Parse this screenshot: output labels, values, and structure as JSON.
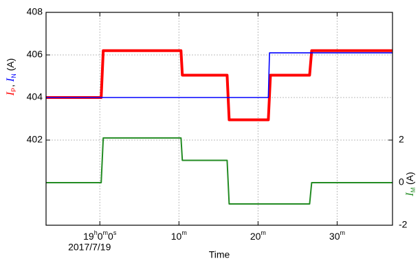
{
  "chart_data": {
    "type": "line",
    "xlabel": "Time",
    "date_label": "2017/7/19",
    "xlim": [
      -6.8,
      37
    ],
    "xticks": [
      {
        "value": 0,
        "label": "19h0m0s"
      },
      {
        "value": 10,
        "label": "10m"
      },
      {
        "value": 20,
        "label": "20m"
      },
      {
        "value": 30,
        "label": "30m"
      }
    ],
    "ylim": [
      398,
      408
    ],
    "yticks": [
      402,
      404,
      406,
      408
    ],
    "y2lim": [
      -2,
      8
    ],
    "y2ticks": [
      -2,
      0,
      2
    ],
    "ylabel_separator": ",",
    "unit": "(A)",
    "grid": true,
    "series": [
      {
        "name": "I",
        "subscript": "P",
        "color": "#ff0000",
        "linewidth": 4,
        "x": [
          -6.8,
          0.17,
          0.43,
          10.26,
          10.43,
          16.09,
          16.35,
          21.3,
          21.57,
          26.52,
          26.78,
          37
        ],
        "values": [
          404.0,
          404.0,
          406.2,
          406.2,
          405.05,
          405.05,
          402.95,
          402.95,
          405.05,
          405.05,
          406.2,
          406.2
        ]
      },
      {
        "name": "I",
        "subscript": "N",
        "color": "#0000ff",
        "linewidth": 1.6,
        "x": [
          -6.8,
          21.3,
          21.45,
          37
        ],
        "values": [
          404.0,
          404.0,
          406.1,
          406.1
        ]
      },
      {
        "name": "I",
        "subscript": "M",
        "color": "#228b22",
        "linewidth": 2,
        "axis": "y2",
        "x": [
          -6.8,
          0.17,
          0.43,
          10.26,
          10.43,
          16.09,
          16.35,
          26.52,
          26.78,
          37
        ],
        "values": [
          0,
          0,
          2.1,
          2.1,
          1.05,
          1.05,
          -1.0,
          -1.0,
          0,
          0
        ]
      }
    ]
  }
}
